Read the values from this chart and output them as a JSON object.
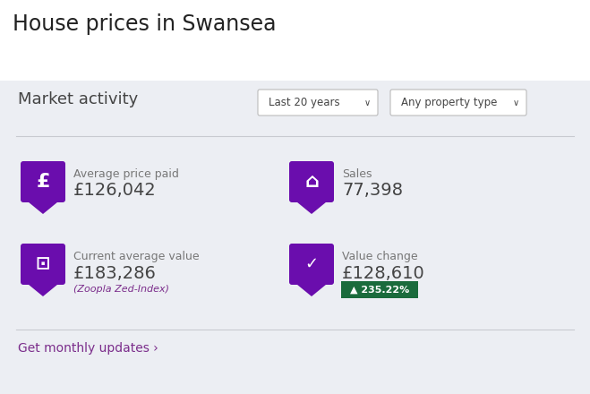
{
  "title": "House prices in Swansea",
  "section_title": "Market activity",
  "dropdown1": "Last 20 years",
  "dropdown2": "Any property type",
  "card1_label": "Average price paid",
  "card1_value": "£126,042",
  "card1_icon": "£",
  "card2_label": "Sales",
  "card2_value": "77,398",
  "card3_label": "Current average value",
  "card3_value": "£183,286",
  "card3_subtext": "(Zoopla Zed-Index)",
  "card4_label": "Value change",
  "card4_value": "£128,610",
  "card4_badge": "▲ 235.22%",
  "footer_link": "Get monthly updates ›",
  "bg_color": "#eceef3",
  "white_bg": "#ffffff",
  "icon_bg": "#6a0dad",
  "purple_color": "#7b2d8b",
  "text_dark": "#444444",
  "text_gray": "#777777",
  "badge_bg": "#1a6b3c",
  "badge_text": "#ffffff",
  "link_color": "#7b2d8b",
  "separator_color": "#c8cad0",
  "title_color": "#222222",
  "dropdown_border": "#bbbbbb",
  "value_color": "#444444",
  "fig_w": 6.59,
  "fig_h": 4.4,
  "dpi": 100
}
